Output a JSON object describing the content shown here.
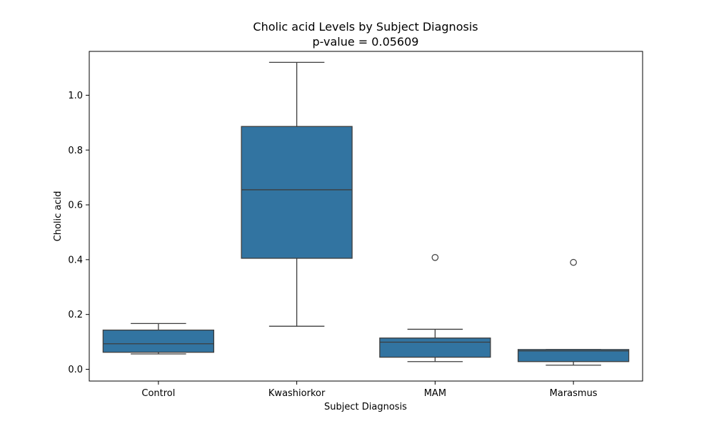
{
  "chart_data": {
    "type": "box",
    "title": "Cholic acid Levels by Subject Diagnosis",
    "subtitle": "p-value = 0.05609",
    "xlabel": "Subject Diagnosis",
    "ylabel": "Cholic acid",
    "ylim": [
      -0.043,
      1.16
    ],
    "yticks": [
      0.0,
      0.2,
      0.4,
      0.6,
      0.8,
      1.0
    ],
    "ytick_labels": [
      "0.0",
      "0.2",
      "0.4",
      "0.6",
      "0.8",
      "1.0"
    ],
    "grid": false,
    "categories": [
      "Control",
      "Kwashiorkor",
      "MAM",
      "Marasmus"
    ],
    "boxes": [
      {
        "category": "Control",
        "whisker_low": 0.056,
        "q1": 0.062,
        "median": 0.093,
        "q3": 0.143,
        "whisker_high": 0.167,
        "outliers": []
      },
      {
        "category": "Kwashiorkor",
        "whisker_low": 0.157,
        "q1": 0.405,
        "median": 0.655,
        "q3": 0.886,
        "whisker_high": 1.12,
        "outliers": []
      },
      {
        "category": "MAM",
        "whisker_low": 0.028,
        "q1": 0.044,
        "median": 0.099,
        "q3": 0.114,
        "whisker_high": 0.146,
        "outliers": [
          0.408
        ]
      },
      {
        "category": "Marasmus",
        "whisker_low": 0.015,
        "q1": 0.028,
        "median": 0.067,
        "q3": 0.072,
        "whisker_high": 0.072,
        "outliers": [
          0.39
        ]
      }
    ],
    "colors": {
      "box_fill": "#3274a1",
      "line": "#3d3d3d",
      "axis": "#000000",
      "outlier_fill": "#ffffff"
    }
  }
}
